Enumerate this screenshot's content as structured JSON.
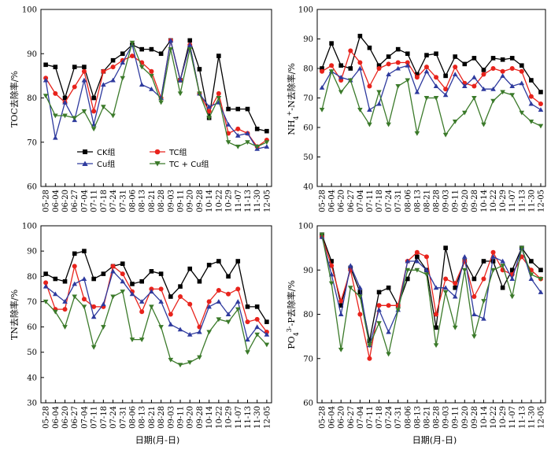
{
  "colors": {
    "CK": "#000000",
    "TC": "#e8231c",
    "Cu": "#2e3a9e",
    "TCCu": "#3b7a2a"
  },
  "legend": {
    "ck": "CK组",
    "tc": "TC组",
    "cu": "Cu组",
    "tccu": "TC + Cu组"
  },
  "chart_data": [
    {
      "type": "line",
      "ylabel": "TOC去除率/%",
      "xlabel": "",
      "ylim": [
        60,
        100
      ],
      "yticks": [
        60,
        70,
        80,
        90,
        100
      ],
      "categories": [
        "05-28",
        "06-04",
        "06-20",
        "06-27",
        "07-04",
        "07-11",
        "07-18",
        "07-24",
        "07-31",
        "08-06",
        "08-13",
        "08-21",
        "08-28",
        "09-03",
        "09-11",
        "09-20",
        "09-28",
        "10-14",
        "10-22",
        "10-29",
        "11-07",
        "11-13",
        "11-30",
        "12-05"
      ],
      "legend_position": "bottom-left",
      "series": [
        {
          "name": "CK组",
          "key": "CK",
          "marker": "square",
          "values": [
            87.5,
            87,
            80,
            87,
            87,
            80,
            86,
            88.5,
            90,
            92,
            91,
            91,
            90,
            93,
            84,
            93,
            86.5,
            75.5,
            89.5,
            77.5,
            77.5,
            77.5,
            73,
            72.5
          ]
        },
        {
          "name": "TC组",
          "key": "TC",
          "marker": "circle",
          "values": [
            84.5,
            81,
            79,
            82.5,
            86,
            77,
            86,
            87,
            88.5,
            89.5,
            88,
            86,
            80,
            93,
            84,
            92,
            81,
            77,
            81,
            72,
            73,
            72,
            69,
            70.5
          ]
        },
        {
          "name": "Cu组",
          "key": "Cu",
          "marker": "triangle",
          "values": [
            84,
            71,
            79,
            75,
            84,
            74,
            83,
            84,
            88,
            92,
            83,
            82,
            80,
            93,
            84,
            92,
            81,
            78,
            79,
            74,
            71.5,
            72,
            68.5,
            69
          ]
        },
        {
          "name": "TC + Cu组",
          "key": "TCCu",
          "marker": "triangle-down",
          "values": [
            80.5,
            76,
            76,
            75.5,
            77,
            73,
            78,
            76,
            84.5,
            92.5,
            87,
            85,
            79,
            91,
            81,
            91,
            81,
            75.5,
            80,
            70,
            69,
            70,
            69,
            70
          ]
        }
      ]
    },
    {
      "type": "line",
      "ylabel": "NH4+-N去除率/%",
      "ylabel_parts": [
        "NH",
        "4",
        "+",
        "-N去除率/%"
      ],
      "xlabel": "",
      "ylim": [
        40,
        100
      ],
      "yticks": [
        40,
        50,
        60,
        70,
        80,
        90,
        100
      ],
      "categories": [
        "05-28",
        "06-04",
        "06-20",
        "06-27",
        "07-04",
        "07-11",
        "07-18",
        "07-24",
        "07-31",
        "08-06",
        "08-13",
        "08-21",
        "08-28",
        "09-03",
        "09-11",
        "09-20",
        "09-28",
        "10-14",
        "10-22",
        "10-29",
        "11-07",
        "11-13",
        "11-30",
        "12-05"
      ],
      "series": [
        {
          "name": "CK组",
          "key": "CK",
          "marker": "square",
          "values": [
            80,
            88.5,
            81,
            80,
            91,
            87,
            81,
            84,
            86.5,
            85,
            78,
            84.5,
            85,
            77.5,
            84,
            81.5,
            83.5,
            79.5,
            83.5,
            83,
            83.5,
            81,
            76,
            72
          ]
        },
        {
          "name": "TC组",
          "key": "TC",
          "marker": "circle",
          "values": [
            79,
            81,
            76,
            86,
            82,
            74,
            80,
            81.5,
            82,
            82,
            77,
            80.5,
            77,
            73,
            80.5,
            75,
            74,
            78,
            80,
            79,
            80,
            79,
            70.5,
            68
          ]
        },
        {
          "name": "Cu组",
          "key": "Cu",
          "marker": "triangle",
          "values": [
            73.5,
            79,
            77,
            76,
            80,
            66,
            68,
            78,
            80,
            81,
            72,
            79,
            74,
            71,
            78,
            74,
            77,
            73,
            73,
            77.5,
            74,
            75,
            68,
            66
          ]
        },
        {
          "name": "TC + Cu组",
          "key": "TCCu",
          "marker": "triangle-down",
          "values": [
            66,
            79,
            72,
            76,
            66,
            61,
            72,
            61,
            74,
            76,
            58,
            70,
            70,
            57.5,
            62,
            65,
            70,
            61,
            69,
            72,
            71,
            65,
            62,
            60.5
          ]
        }
      ]
    },
    {
      "type": "line",
      "ylabel": "TN去除率/%",
      "xlabel": "日期(月-日)",
      "ylim": [
        30,
        100
      ],
      "yticks": [
        30,
        40,
        50,
        60,
        70,
        80,
        90,
        100
      ],
      "categories": [
        "05-28",
        "06-04",
        "06-20",
        "06-27",
        "07-04",
        "07-11",
        "07-18",
        "07-24",
        "07-31",
        "08-06",
        "08-13",
        "08-21",
        "08-28",
        "09-03",
        "09-11",
        "09-20",
        "09-28",
        "10-14",
        "10-22",
        "10-29",
        "11-07",
        "11-13",
        "11-30",
        "12-05"
      ],
      "series": [
        {
          "name": "CK组",
          "key": "CK",
          "marker": "square",
          "values": [
            81,
            79,
            78,
            89,
            90,
            79,
            81,
            84,
            85,
            77,
            78,
            82,
            81,
            72,
            76,
            83,
            78,
            84.5,
            86,
            80,
            86,
            68,
            68,
            62
          ]
        },
        {
          "name": "TC组",
          "key": "TC",
          "marker": "circle",
          "values": [
            77.5,
            67,
            67,
            84,
            71,
            68,
            68,
            84,
            81,
            74,
            66,
            75,
            75,
            65,
            72,
            69,
            60,
            70,
            74.5,
            73,
            75,
            62,
            63,
            58
          ]
        },
        {
          "name": "Cu组",
          "key": "Cu",
          "marker": "triangle",
          "values": [
            76,
            73,
            70,
            77,
            79,
            64,
            69,
            82,
            78,
            73,
            70,
            74,
            70,
            61,
            59,
            57,
            58,
            68,
            70,
            65,
            70,
            55,
            60,
            57
          ]
        },
        {
          "name": "TC + Cu组",
          "key": "TCCu",
          "marker": "triangle-down",
          "values": [
            70,
            66,
            60,
            72,
            68,
            52,
            60,
            72,
            74,
            55,
            55,
            68,
            60,
            47,
            45,
            46,
            48,
            58,
            63,
            62,
            67,
            50,
            57,
            53
          ]
        }
      ]
    },
    {
      "type": "line",
      "ylabel": "PO43--P去除率/%",
      "ylabel_parts": [
        "PO",
        "4",
        "3-",
        "-P去除率/%"
      ],
      "xlabel": "日期(月-日)",
      "ylim": [
        60,
        100
      ],
      "yticks": [
        60,
        70,
        80,
        90,
        100
      ],
      "categories": [
        "05-28",
        "06-04",
        "06-20",
        "06-27",
        "07-04",
        "07-11",
        "07-18",
        "07-24",
        "07-31",
        "08-06",
        "08-13",
        "08-21",
        "08-28",
        "09-03",
        "09-11",
        "09-20",
        "09-28",
        "10-14",
        "10-22",
        "10-29",
        "11-07",
        "11-13",
        "11-30",
        "12-05"
      ],
      "series": [
        {
          "name": "CK组",
          "key": "CK",
          "marker": "square",
          "values": [
            98,
            92,
            82,
            90.5,
            85,
            74,
            85,
            86,
            82,
            88,
            93,
            90,
            77,
            95,
            86,
            92,
            88,
            92,
            92,
            86,
            90,
            95,
            92,
            90
          ]
        },
        {
          "name": "TC组",
          "key": "TC",
          "marker": "circle",
          "values": [
            97.5,
            91,
            83,
            90,
            80,
            70,
            82,
            82,
            82,
            92,
            94,
            93,
            80,
            88,
            87,
            92,
            84,
            88,
            94,
            90,
            89,
            93,
            90,
            88
          ]
        },
        {
          "name": "Cu组",
          "key": "Cu",
          "marker": "triangle",
          "values": [
            97.5,
            89,
            80,
            91,
            86,
            73,
            81,
            76,
            81,
            92,
            92,
            90,
            86,
            86,
            84,
            93,
            80,
            79,
            93,
            92,
            88,
            95,
            88,
            85
          ]
        },
        {
          "name": "TC + Cu组",
          "key": "TCCu",
          "marker": "triangle-down",
          "values": [
            98,
            87,
            72,
            86,
            84,
            73,
            78,
            71,
            81,
            90,
            90,
            89,
            73,
            85,
            77,
            90,
            75,
            83,
            90,
            91,
            84,
            95,
            89,
            88
          ]
        }
      ]
    }
  ]
}
